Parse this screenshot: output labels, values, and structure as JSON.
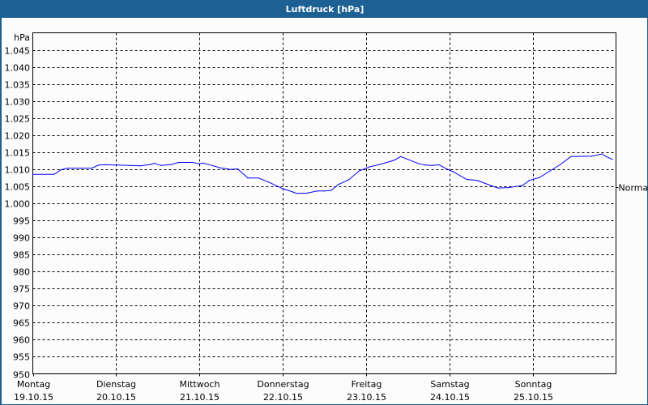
{
  "window": {
    "title": "Luftdruck [hPa]",
    "background": "#1c6094"
  },
  "chart_data": {
    "type": "line",
    "title": "Luftdruck [hPa]",
    "ylabel": "hPa",
    "ylim": [
      950,
      1050
    ],
    "yticks": [
      950,
      955,
      960,
      965,
      970,
      975,
      980,
      985,
      990,
      995,
      1000,
      1005,
      1010,
      1015,
      1020,
      1025,
      1030,
      1035,
      1040,
      1045
    ],
    "ytick_labels": [
      "950",
      "955",
      "960",
      "965",
      "970",
      "975",
      "980",
      "985",
      "990",
      "995",
      "1.000",
      "1.005",
      "1.010",
      "1.015",
      "1.020",
      "1.025",
      "1.030",
      "1.035",
      "1.040",
      "1.045"
    ],
    "xlim": [
      "2015-10-19T00:00",
      "2015-10-26T00:00"
    ],
    "xticks": [
      {
        "day": "Montag",
        "date": "19.10.15"
      },
      {
        "day": "Dienstag",
        "date": "20.10.15"
      },
      {
        "day": "Mittwoch",
        "date": "21.10.15"
      },
      {
        "day": "Donnerstag",
        "date": "22.10.15"
      },
      {
        "day": "Freitag",
        "date": "23.10.15"
      },
      {
        "day": "Samstag",
        "date": "24.10.15"
      },
      {
        "day": "Sonntag",
        "date": "25.10.15"
      }
    ],
    "grid": true,
    "line_color": "#0000ff",
    "reference": {
      "label": "Normal",
      "value": 1004.7
    },
    "series": [
      {
        "x": [
          "2015-10-19T00:00",
          "2015-10-19T06:00",
          "2015-10-19T07:00",
          "2015-10-19T08:00",
          "2015-10-19T10:00",
          "2015-10-19T14:00",
          "2015-10-19T17:00",
          "2015-10-19T19:00",
          "2015-10-19T21:00",
          "2015-10-20T04:00",
          "2015-10-20T07:00",
          "2015-10-20T10:00",
          "2015-10-20T11:00",
          "2015-10-20T13:00",
          "2015-10-20T16:00",
          "2015-10-20T18:00",
          "2015-10-20T22:00",
          "2015-10-21T00:00",
          "2015-10-21T01:00",
          "2015-10-21T04:00",
          "2015-10-21T06:00",
          "2015-10-21T09:00",
          "2015-10-21T11:00",
          "2015-10-21T14:00",
          "2015-10-21T17:00",
          "2015-10-21T20:00",
          "2015-10-22T00:00",
          "2015-10-22T03:00",
          "2015-10-22T04:00",
          "2015-10-22T07:00",
          "2015-10-22T10:00",
          "2015-10-22T12:00",
          "2015-10-22T14:00",
          "2015-10-22T16:00",
          "2015-10-22T19:00",
          "2015-10-22T22:00",
          "2015-10-23T01:00",
          "2015-10-23T04:00",
          "2015-10-23T08:00",
          "2015-10-23T10:00",
          "2015-10-23T12:00",
          "2015-10-23T15:00",
          "2015-10-23T17:00",
          "2015-10-23T19:00",
          "2015-10-23T21:00",
          "2015-10-23T23:00",
          "2015-10-24T01:00",
          "2015-10-24T05:00",
          "2015-10-24T08:00",
          "2015-10-24T12:00",
          "2015-10-24T14:00",
          "2015-10-24T17:00",
          "2015-10-24T21:00",
          "2015-10-24T23:00",
          "2015-10-25T02:00",
          "2015-10-25T05:00",
          "2015-10-25T08:00",
          "2015-10-25T11:00",
          "2015-10-25T17:00",
          "2015-10-25T20:00",
          "2015-10-25T21:00",
          "2015-10-25T23:00"
        ],
        "y": [
          1008.5,
          1008.5,
          1009.0,
          1009.8,
          1010.3,
          1010.3,
          1010.3,
          1011.2,
          1011.3,
          1011.1,
          1011.0,
          1011.4,
          1011.7,
          1011.1,
          1011.4,
          1012.0,
          1012.0,
          1011.6,
          1011.8,
          1011.0,
          1010.4,
          1009.9,
          1010.1,
          1007.4,
          1007.4,
          1006.2,
          1004.3,
          1003.3,
          1002.9,
          1003.0,
          1003.6,
          1003.6,
          1003.8,
          1005.5,
          1006.9,
          1009.5,
          1010.7,
          1011.4,
          1012.6,
          1013.7,
          1012.9,
          1011.7,
          1011.2,
          1011.1,
          1011.3,
          1010.2,
          1009.3,
          1007.0,
          1006.7,
          1005.2,
          1004.5,
          1004.6,
          1005.2,
          1006.7,
          1007.6,
          1009.5,
          1011.4,
          1013.7,
          1013.8,
          1014.5,
          1013.8,
          1012.9
        ]
      }
    ]
  }
}
